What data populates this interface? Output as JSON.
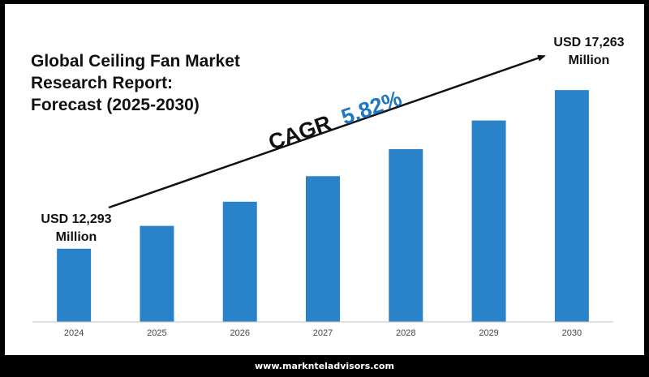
{
  "title_lines": [
    "Global Ceiling Fan Market",
    "Research Report:",
    "Forecast (2025-2030)"
  ],
  "cagr": {
    "label": "CAGR",
    "value": "5.82%",
    "color": "#1f77c4"
  },
  "start_label": [
    "USD 12,293",
    "Million"
  ],
  "end_label": [
    "USD 17,263",
    "Million"
  ],
  "footer": "www.marknteladvisors.com",
  "colors": {
    "bar": "#2a82c8",
    "background": "#ffffff",
    "frame": "#000000",
    "text": "#111111"
  },
  "chart_data": {
    "type": "bar",
    "categories": [
      "2024",
      "2025",
      "2026",
      "2027",
      "2028",
      "2029",
      "2030"
    ],
    "values": [
      12293,
      13008,
      13765,
      14566,
      15414,
      16311,
      17263
    ],
    "ylim": [
      10000,
      17800
    ],
    "grid": false,
    "yaxis_visible": false
  }
}
